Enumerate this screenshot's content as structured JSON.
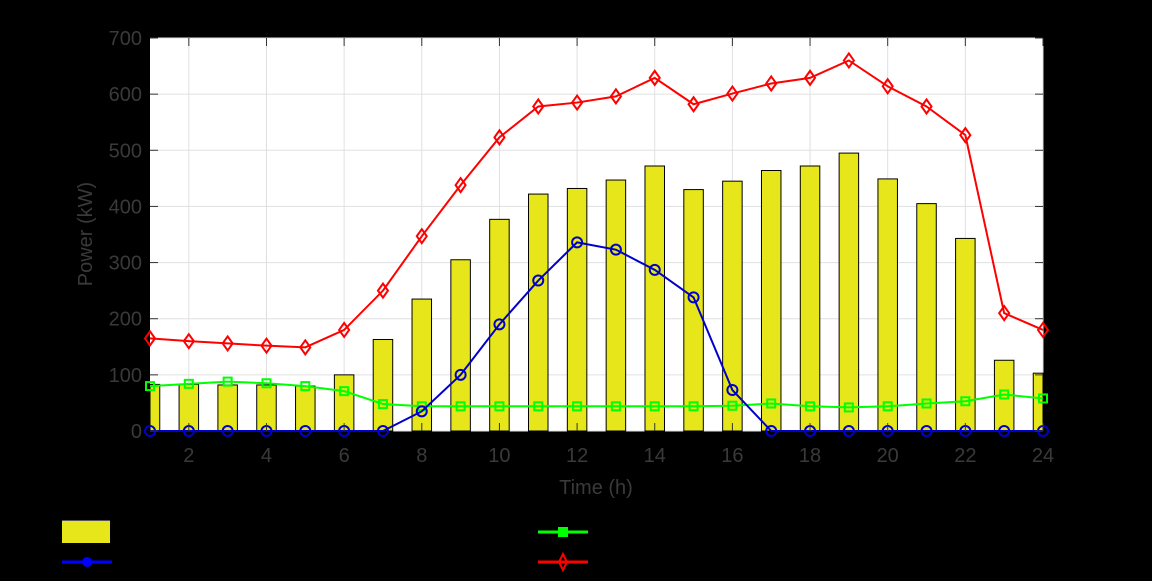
{
  "chart_data": {
    "type": "bar+line",
    "title": "",
    "xlabel": "Time (h)",
    "ylabel": "Power (kW)",
    "xlim": [
      1,
      24
    ],
    "ylim": [
      0,
      700
    ],
    "xticks": [
      2,
      4,
      6,
      8,
      10,
      12,
      14,
      16,
      18,
      20,
      22,
      24
    ],
    "yticks": [
      0,
      100,
      200,
      300,
      400,
      500,
      600,
      700
    ],
    "grid": true,
    "legend_position": "bottom",
    "x": [
      1,
      2,
      3,
      4,
      5,
      6,
      7,
      8,
      9,
      10,
      11,
      12,
      13,
      14,
      15,
      16,
      17,
      18,
      19,
      20,
      21,
      22,
      23,
      24
    ],
    "series": [
      {
        "name": "",
        "type": "bar",
        "color": "#e6e61a",
        "edgecolor": "#000000",
        "values": [
          83,
          83,
          82,
          82,
          80,
          100,
          163,
          235,
          305,
          377,
          422,
          432,
          447,
          472,
          430,
          445,
          464,
          472,
          495,
          449,
          405,
          343,
          126,
          103
        ]
      },
      {
        "name": "",
        "type": "line",
        "marker": "square",
        "color": "#00ff00",
        "values": [
          80,
          84,
          88,
          85,
          80,
          71,
          48,
          44,
          44,
          44,
          44,
          44,
          44,
          44,
          44,
          45,
          49,
          44,
          42,
          44,
          49,
          53,
          65,
          58
        ]
      },
      {
        "name": "",
        "type": "line",
        "marker": "circle",
        "color": "#0000cc",
        "values": [
          0,
          0,
          0,
          0,
          0,
          0,
          0,
          35,
          100,
          190,
          268,
          336,
          323,
          287,
          238,
          73,
          0,
          0,
          0,
          0,
          0,
          0,
          0,
          0
        ]
      },
      {
        "name": "",
        "type": "line",
        "marker": "diamond",
        "color": "#ff0000",
        "values": [
          165,
          160,
          156,
          152,
          149,
          180,
          250,
          347,
          438,
          523,
          578,
          585,
          596,
          629,
          582,
          601,
          619,
          629,
          660,
          614,
          578,
          527,
          210,
          180
        ]
      }
    ]
  },
  "legend": {
    "items": [
      {
        "label": "",
        "symbol": "bar",
        "color": "#e6e61a"
      },
      {
        "label": "",
        "symbol": "line-square",
        "color": "#00ff00"
      },
      {
        "label": "",
        "symbol": "line-circle",
        "color": "#0000ff"
      },
      {
        "label": "",
        "symbol": "line-diamond",
        "color": "#ff0000"
      }
    ]
  }
}
